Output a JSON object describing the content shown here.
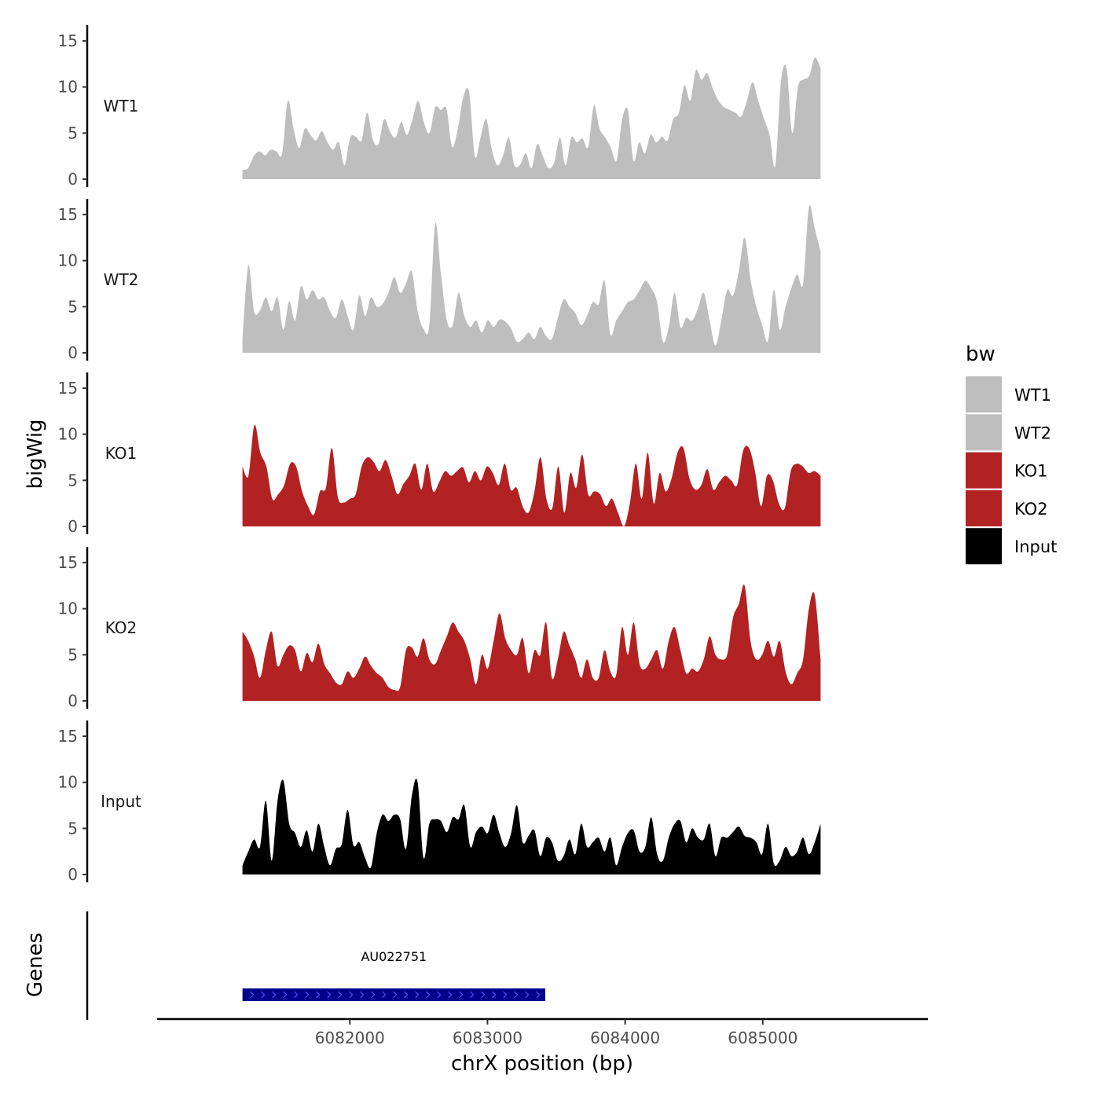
{
  "chart_data": {
    "type": "area",
    "ylabel": "bigWig",
    "xlabel": "chrX position (bp)",
    "genes_label": "Genes",
    "xlim": [
      6080600,
      6086200
    ],
    "ylim": [
      0,
      16
    ],
    "y_ticks": [
      0,
      5,
      10,
      15
    ],
    "x_ticks": [
      6082000,
      6083000,
      6084000,
      6085000
    ],
    "x_tick_labels": [
      "6082000",
      "6083000",
      "6084000",
      "6085000"
    ],
    "region": [
      6081220,
      6085420
    ],
    "legend": {
      "title": "bw",
      "entries": [
        {
          "label": "WT1",
          "color": "#bebebe"
        },
        {
          "label": "WT2",
          "color": "#bebebe"
        },
        {
          "label": "KO1",
          "color": "#b22222"
        },
        {
          "label": "KO2",
          "color": "#b22222"
        },
        {
          "label": "Input",
          "color": "#000000"
        }
      ]
    },
    "series": [
      {
        "name": "WT1",
        "color": "#bebebe",
        "values": [
          1.0,
          1.2,
          2.5,
          3.0,
          2.6,
          3.2,
          3.0,
          2.8,
          8.5,
          5.5,
          3.4,
          5.5,
          4.8,
          4.2,
          5.2,
          4.0,
          3.2,
          4.0,
          1.5,
          4.5,
          4.6,
          4.2,
          7.2,
          4.3,
          3.8,
          6.5,
          5.2,
          4.5,
          6.2,
          4.8,
          6.5,
          8.5,
          6.2,
          5.0,
          7.8,
          7.5,
          7.6,
          3.5,
          5.5,
          9.0,
          9.4,
          2.5,
          4.5,
          6.5,
          3.2,
          1.5,
          2.6,
          4.5,
          1.5,
          1.6,
          2.8,
          1.2,
          3.8,
          2.5,
          1.2,
          1.8,
          4.5,
          1.5,
          4.5,
          4.0,
          4.4,
          3.5,
          8.0,
          5.5,
          4.5,
          3.4,
          2.0,
          6.5,
          7.5,
          2.0,
          4.0,
          2.8,
          4.8,
          4.0,
          4.6,
          4.2,
          6.5,
          7.2,
          10.2,
          8.5,
          11.8,
          10.8,
          11.5,
          9.8,
          8.5,
          7.8,
          7.5,
          7.2,
          6.8,
          8.5,
          10.5,
          8.5,
          6.6,
          4.8,
          1.5,
          10.5,
          12.0,
          5.0,
          10.0,
          10.8,
          11.2,
          13.2,
          12.0
        ]
      },
      {
        "name": "WT2",
        "color": "#bebebe",
        "values": [
          1.5,
          9.5,
          4.5,
          4.6,
          6.0,
          4.5,
          6.0,
          2.5,
          5.6,
          3.5,
          7.2,
          5.8,
          6.8,
          5.8,
          6.0,
          4.5,
          3.8,
          5.8,
          4.0,
          2.5,
          6.2,
          4.0,
          6.0,
          5.0,
          5.3,
          6.5,
          8.2,
          6.5,
          7.5,
          8.8,
          4.5,
          2.6,
          3.0,
          14.0,
          8.5,
          3.5,
          3.0,
          6.5,
          4.0,
          2.8,
          3.5,
          2.2,
          3.5,
          2.8,
          3.6,
          3.4,
          2.6,
          1.2,
          1.5,
          2.2,
          1.5,
          2.8,
          1.8,
          1.5,
          3.8,
          5.8,
          5.0,
          4.3,
          3.0,
          4.0,
          5.5,
          5.3,
          7.8,
          2.0,
          3.5,
          4.5,
          5.5,
          5.8,
          6.8,
          7.8,
          7.0,
          5.5,
          1.2,
          2.8,
          6.5,
          2.8,
          3.8,
          3.5,
          4.8,
          6.5,
          3.5,
          0.8,
          3.5,
          6.8,
          6.2,
          8.8,
          12.5,
          8.0,
          5.0,
          3.0,
          1.3,
          6.8,
          2.5,
          5.0,
          7.0,
          8.5,
          7.5,
          15.8,
          13.5,
          11.0
        ]
      },
      {
        "name": "KO1",
        "color": "#b22222",
        "values": [
          6.5,
          5.5,
          11.0,
          8.0,
          6.5,
          3.0,
          3.5,
          4.5,
          6.8,
          6.5,
          3.8,
          2.2,
          1.3,
          3.8,
          4.2,
          8.5,
          3.2,
          2.6,
          3.0,
          3.5,
          6.5,
          7.5,
          7.0,
          6.0,
          7.2,
          5.5,
          3.5,
          4.6,
          5.5,
          6.8,
          4.0,
          6.8,
          3.8,
          4.8,
          6.0,
          5.5,
          6.0,
          6.4,
          4.8,
          6.0,
          5.0,
          6.5,
          5.8,
          4.5,
          6.8,
          4.0,
          4.2,
          2.2,
          1.5,
          3.8,
          7.5,
          3.0,
          2.0,
          6.5,
          1.5,
          5.8,
          4.2,
          7.8,
          3.5,
          3.8,
          3.5,
          2.2,
          3.0,
          1.5,
          0.0,
          2.5,
          6.8,
          3.0,
          8.0,
          2.5,
          5.8,
          3.8,
          5.2,
          8.0,
          8.5,
          5.2,
          4.0,
          4.5,
          6.2,
          4.0,
          4.8,
          5.5,
          5.0,
          4.5,
          8.2,
          8.5,
          6.0,
          2.2,
          5.5,
          5.0,
          2.5,
          2.0,
          6.0,
          6.8,
          6.5,
          5.8,
          6.0,
          5.5
        ]
      },
      {
        "name": "KO2",
        "color": "#b22222",
        "values": [
          7.5,
          6.5,
          4.8,
          2.5,
          5.5,
          7.5,
          3.8,
          5.0,
          6.0,
          5.5,
          3.2,
          5.2,
          4.2,
          6.2,
          4.0,
          3.0,
          2.0,
          1.8,
          3.2,
          2.5,
          3.5,
          4.8,
          3.8,
          3.0,
          2.5,
          1.5,
          1.2,
          1.5,
          5.5,
          5.8,
          4.8,
          6.8,
          4.5,
          4.0,
          5.5,
          7.0,
          8.5,
          7.5,
          6.5,
          4.5,
          1.8,
          5.0,
          3.5,
          6.5,
          9.5,
          6.8,
          5.5,
          5.0,
          6.8,
          3.0,
          5.5,
          5.0,
          8.5,
          2.5,
          4.5,
          7.5,
          6.0,
          4.5,
          2.5,
          4.5,
          2.5,
          2.5,
          5.5,
          3.2,
          2.8,
          8.0,
          5.0,
          8.5,
          4.0,
          3.5,
          4.5,
          5.5,
          3.5,
          6.5,
          8.0,
          5.5,
          3.0,
          3.5,
          3.2,
          4.5,
          7.0,
          5.0,
          4.5,
          5.0,
          9.0,
          10.5,
          12.5,
          6.5,
          4.5,
          5.0,
          6.5,
          4.8,
          6.5,
          3.2,
          1.8,
          3.0,
          4.5,
          10.0,
          11.5,
          4.5
        ]
      },
      {
        "name": "Input",
        "color": "#000000",
        "values": [
          1.0,
          2.5,
          3.8,
          3.0,
          8.0,
          1.5,
          8.0,
          10.2,
          5.5,
          4.5,
          3.0,
          4.8,
          2.5,
          5.5,
          3.0,
          1.0,
          2.8,
          3.3,
          7.0,
          3.2,
          3.5,
          1.8,
          0.8,
          4.5,
          6.5,
          5.8,
          6.5,
          6.0,
          2.8,
          8.5,
          10.0,
          1.8,
          5.5,
          6.0,
          5.8,
          4.6,
          6.2,
          6.0,
          7.5,
          3.0,
          4.6,
          5.2,
          4.5,
          6.5,
          4.5,
          3.0,
          4.5,
          7.5,
          3.5,
          4.2,
          4.8,
          2.0,
          4.0,
          3.5,
          1.5,
          2.0,
          3.8,
          2.2,
          5.5,
          3.0,
          3.5,
          4.0,
          2.5,
          4.0,
          1.0,
          3.0,
          4.5,
          4.8,
          2.5,
          3.0,
          6.2,
          2.2,
          1.5,
          4.0,
          5.5,
          5.8,
          3.5,
          5.0,
          4.0,
          3.8,
          5.5,
          2.0,
          4.0,
          4.0,
          4.6,
          5.2,
          4.2,
          4.0,
          3.5,
          2.2,
          5.5,
          1.2,
          1.5,
          3.0,
          2.0,
          2.5,
          4.0,
          2.2,
          3.5,
          5.5
        ]
      }
    ],
    "genes": [
      {
        "name": "AU022751",
        "start": 6081220,
        "end": 6083420,
        "color": "#00008b"
      }
    ]
  }
}
